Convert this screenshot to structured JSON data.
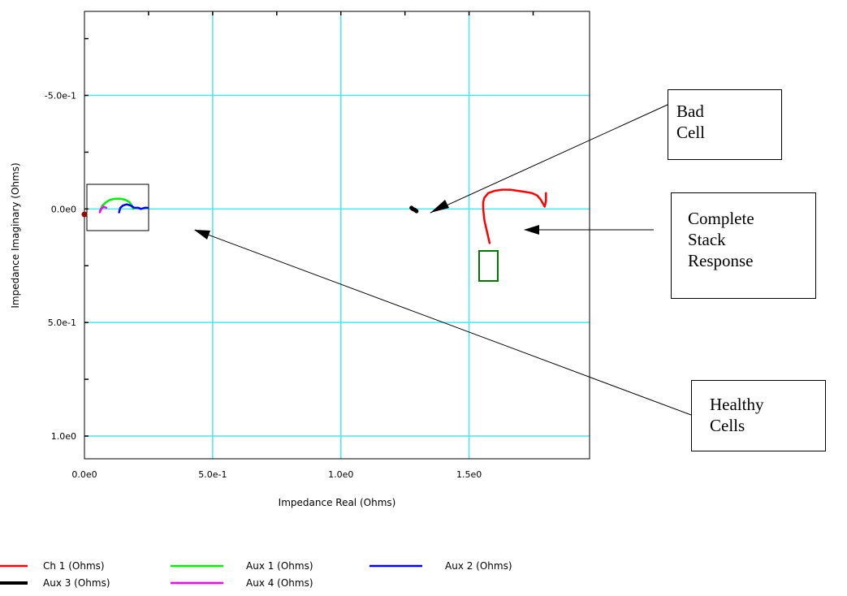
{
  "chart_data": {
    "type": "line",
    "title": "",
    "xlabel": "Impedance Real (Ohms)",
    "ylabel": "Impedance Imaginary (Ohms)",
    "xlim": [
      0,
      1.97
    ],
    "ylim": [
      1.1,
      -0.87
    ],
    "y_inverted": true,
    "grid": true,
    "grid_color": "#48e6ee",
    "x_ticks": [
      {
        "value": 0.0,
        "label": "0.0e0"
      },
      {
        "value": 0.5,
        "label": "5.0e-1"
      },
      {
        "value": 1.0,
        "label": "1.0e0"
      },
      {
        "value": 1.5,
        "label": "1.5e0"
      }
    ],
    "y_ticks": [
      {
        "value": -0.5,
        "label": "-5.0e-1"
      },
      {
        "value": 0.0,
        "label": "0.0e0"
      },
      {
        "value": 0.5,
        "label": "5.0e-1"
      },
      {
        "value": 1.0,
        "label": "1.0e0"
      }
    ],
    "legend_position": "bottom",
    "series": [
      {
        "name": "Ch 1 (Ohms)",
        "color": "#ff0000",
        "x": [
          1.58,
          1.57,
          1.56,
          1.555,
          1.555,
          1.56,
          1.575,
          1.6,
          1.63,
          1.66,
          1.69,
          1.72,
          1.745,
          1.765,
          1.78,
          1.79,
          1.795,
          1.8,
          1.8
        ],
        "y": [
          0.15,
          0.1,
          0.05,
          0.0,
          -0.03,
          -0.05,
          -0.07,
          -0.08,
          -0.085,
          -0.085,
          -0.08,
          -0.075,
          -0.07,
          -0.06,
          -0.04,
          -0.02,
          -0.01,
          -0.035,
          -0.07
        ]
      },
      {
        "name": "Aux 1 (Ohms)",
        "color": "#00ee00",
        "x": [
          0.06,
          0.07,
          0.085,
          0.1,
          0.12,
          0.14,
          0.16,
          0.175,
          0.185,
          0.19
        ],
        "y": [
          0.01,
          -0.015,
          -0.03,
          -0.04,
          -0.045,
          -0.045,
          -0.04,
          -0.03,
          -0.015,
          0.0
        ]
      },
      {
        "name": "Aux 2 (Ohms)",
        "color": "#0000ff",
        "x": [
          0.135,
          0.14,
          0.15,
          0.165,
          0.18,
          0.195,
          0.21,
          0.22,
          0.235,
          0.245
        ],
        "y": [
          0.015,
          -0.005,
          -0.015,
          -0.02,
          -0.015,
          -0.005,
          -0.005,
          0.0,
          -0.005,
          -0.005
        ]
      },
      {
        "name": "Aux 3 (Ohms)",
        "color": "#000000",
        "x": [
          1.275,
          1.28,
          1.29,
          1.295
        ],
        "y": [
          -0.005,
          0.0,
          0.005,
          0.01
        ]
      },
      {
        "name": "Aux 4 (Ohms)",
        "color": "#ff00ff",
        "x": [
          0.06,
          0.065,
          0.075,
          0.085
        ],
        "y": [
          0.015,
          0.0,
          -0.01,
          -0.005
        ]
      }
    ]
  },
  "annotations": {
    "bad_cell": [
      "Bad",
      "Cell"
    ],
    "complete_stack": [
      "Complete",
      "Stack",
      "Response"
    ],
    "healthy_cells": [
      "Healthy",
      "Cells"
    ]
  }
}
